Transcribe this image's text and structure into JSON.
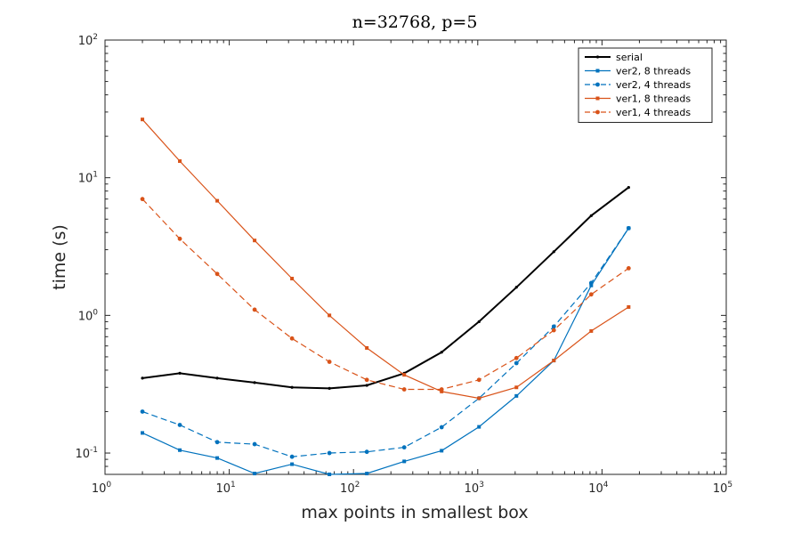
{
  "chart_data": {
    "type": "line",
    "title": "n=32768, p=5",
    "xlabel": "max points in smallest box",
    "ylabel": "time (s)",
    "xscale": "log",
    "yscale": "log",
    "xlim": [
      1,
      100000
    ],
    "ylim": [
      0.07,
      100
    ],
    "x_ticks": [
      {
        "base": "10",
        "exp": "0",
        "value": 1
      },
      {
        "base": "10",
        "exp": "1",
        "value": 10
      },
      {
        "base": "10",
        "exp": "2",
        "value": 100
      },
      {
        "base": "10",
        "exp": "3",
        "value": 1000
      },
      {
        "base": "10",
        "exp": "4",
        "value": 10000
      },
      {
        "base": "10",
        "exp": "5",
        "value": 100000
      }
    ],
    "y_ticks": [
      {
        "base": "10",
        "exp": "-1",
        "value": 0.1
      },
      {
        "base": "10",
        "exp": "0",
        "value": 1
      },
      {
        "base": "10",
        "exp": "1",
        "value": 10
      },
      {
        "base": "10",
        "exp": "2",
        "value": 100
      }
    ],
    "grid": false,
    "legend": "top-right",
    "x": [
      2,
      4,
      8,
      16,
      32,
      64,
      128,
      256,
      512,
      1024,
      2048,
      4096,
      8192,
      16384
    ],
    "series": [
      {
        "name": "serial",
        "color": "#000000",
        "dash": "solid",
        "width": 2,
        "marker": "point",
        "values": [
          0.35,
          0.38,
          0.35,
          0.325,
          0.3,
          0.295,
          0.31,
          0.38,
          0.54,
          0.9,
          1.6,
          2.9,
          5.3,
          8.5
        ]
      },
      {
        "name": "ver2, 8 threads",
        "color": "#0072BD",
        "dash": "solid",
        "width": 1.2,
        "marker": "square",
        "values": [
          0.14,
          0.105,
          0.092,
          0.071,
          0.083,
          0.07,
          0.071,
          0.087,
          0.104,
          0.155,
          0.26,
          0.47,
          1.65,
          4.3
        ]
      },
      {
        "name": "ver2, 4 threads",
        "color": "#0072BD",
        "dash": "dash",
        "width": 1.2,
        "marker": "dot",
        "values": [
          0.2,
          0.16,
          0.12,
          0.116,
          0.094,
          0.1,
          0.102,
          0.11,
          0.154,
          0.25,
          0.45,
          0.83,
          1.72,
          4.3
        ]
      },
      {
        "name": "ver1, 8 threads",
        "color": "#D95319",
        "dash": "solid",
        "width": 1.2,
        "marker": "square",
        "values": [
          26.5,
          13.2,
          6.8,
          3.5,
          1.85,
          1.0,
          0.58,
          0.37,
          0.28,
          0.25,
          0.3,
          0.47,
          0.77,
          1.15
        ]
      },
      {
        "name": "ver1, 4 threads",
        "color": "#D95319",
        "dash": "dash",
        "width": 1.2,
        "marker": "dot",
        "values": [
          7.0,
          3.6,
          2.0,
          1.1,
          0.68,
          0.46,
          0.34,
          0.29,
          0.29,
          0.34,
          0.49,
          0.78,
          1.42,
          2.2
        ]
      }
    ]
  }
}
